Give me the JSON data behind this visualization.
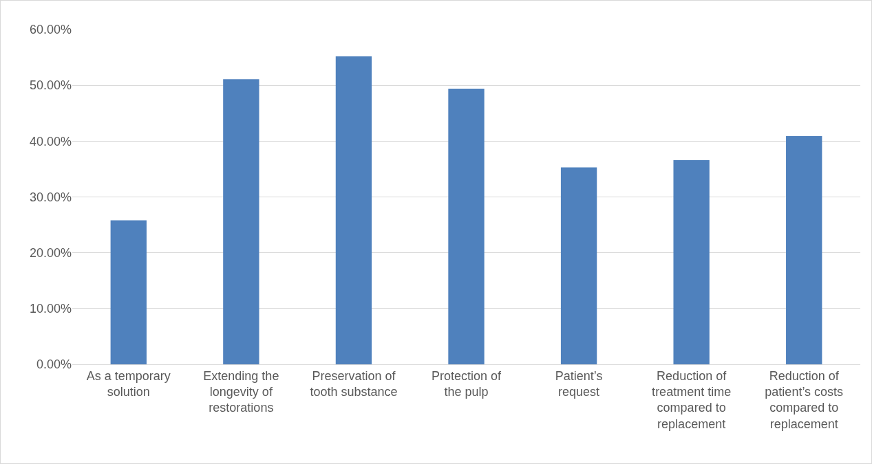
{
  "chart_data": {
    "type": "bar",
    "categories": [
      "As a temporary solution",
      "Extending the longevity of restorations",
      "Preservation of tooth substance",
      "Protection of the pulp",
      "Patient’s request",
      "Reduction of treatment time compared to replacement",
      "Reduction of patient’s costs compared to replacement"
    ],
    "values": [
      25.8,
      51.1,
      55.2,
      49.4,
      35.3,
      36.6,
      40.9
    ],
    "color": "#4f81bd",
    "ylim": [
      0,
      60
    ],
    "yticks": [
      {
        "value": 0,
        "label": "0.00%"
      },
      {
        "value": 10,
        "label": "10.00%"
      },
      {
        "value": 20,
        "label": "20.00%"
      },
      {
        "value": 30,
        "label": "30.00%"
      },
      {
        "value": 40,
        "label": "40.00%"
      },
      {
        "value": 50,
        "label": "50.00%"
      },
      {
        "value": 60,
        "label": "60.00%"
      }
    ],
    "grid": "y"
  }
}
